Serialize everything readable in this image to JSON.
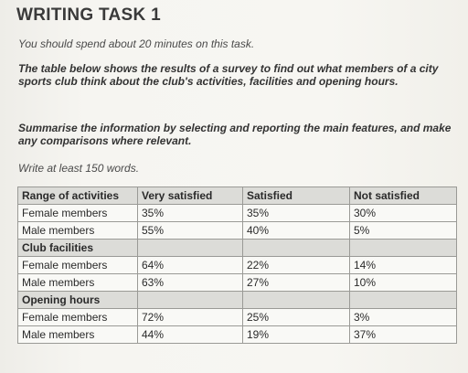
{
  "heading": "WRITING TASK 1",
  "instruction": "You should spend about 20 minutes on this task.",
  "prompt": "The table below shows the results of a survey to find out what members of a city sports club think about the club's activities, facilities and opening hours.",
  "summary_instruction": "Summarise the information by selecting and reporting the main features, and make any comparisons where relevant.",
  "word_count": "Write at least 150 words.",
  "table": {
    "headers": [
      "Range of activities",
      "Very satisfied",
      "Satisfied",
      "Not satisfied"
    ],
    "sections": [
      {
        "label": "Range of activities",
        "rows": [
          {
            "group": "Female members",
            "values": [
              "35%",
              "35%",
              "30%"
            ]
          },
          {
            "group": "Male members",
            "values": [
              "55%",
              "40%",
              "5%"
            ]
          }
        ]
      },
      {
        "label": "Club facilities",
        "rows": [
          {
            "group": "Female members",
            "values": [
              "64%",
              "22%",
              "14%"
            ]
          },
          {
            "group": "Male members",
            "values": [
              "63%",
              "27%",
              "10%"
            ]
          }
        ]
      },
      {
        "label": "Opening hours",
        "rows": [
          {
            "group": "Female members",
            "values": [
              "72%",
              "25%",
              "3%"
            ]
          },
          {
            "group": "Male members",
            "values": [
              "44%",
              "19%",
              "37%"
            ]
          }
        ]
      }
    ]
  }
}
